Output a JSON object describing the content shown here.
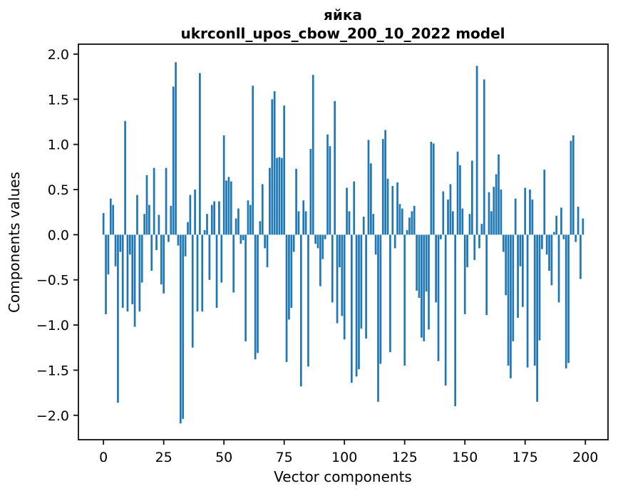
{
  "figure": {
    "title_line1": "яйка",
    "title_line2": "ukrconll_upos_cbow_200_10_2022 model"
  },
  "chart_data": {
    "type": "bar",
    "title": "яйка\nukrconll_upos_cbow_200_10_2022 model",
    "xlabel": "Vector components",
    "ylabel": "Components values",
    "bar_color": "#1f77b4",
    "bar_width": 0.8,
    "grid": false,
    "legend": null,
    "xlim": [
      -10.4,
      209.4
    ],
    "ylim": [
      -2.27,
      2.11
    ],
    "xticks": [
      {
        "value": 0,
        "label": "0"
      },
      {
        "value": 25,
        "label": "25"
      },
      {
        "value": 50,
        "label": "50"
      },
      {
        "value": 75,
        "label": "75"
      },
      {
        "value": 100,
        "label": "100"
      },
      {
        "value": 125,
        "label": "125"
      },
      {
        "value": 150,
        "label": "150"
      },
      {
        "value": 175,
        "label": "175"
      },
      {
        "value": 200,
        "label": "200"
      }
    ],
    "yticks": [
      {
        "value": 2.0,
        "label": "2.0"
      },
      {
        "value": 1.5,
        "label": "1.5"
      },
      {
        "value": 1.0,
        "label": "1.0"
      },
      {
        "value": 0.5,
        "label": "0.5"
      },
      {
        "value": 0.0,
        "label": "0.0"
      },
      {
        "value": -0.5,
        "label": "−0.5"
      },
      {
        "value": -1.0,
        "label": "−1.0"
      },
      {
        "value": -1.5,
        "label": "−1.5"
      },
      {
        "value": -2.0,
        "label": "−2.0"
      }
    ],
    "x_is_index": true,
    "values": [
      0.24,
      -0.88,
      -0.44,
      0.4,
      0.33,
      -0.35,
      -1.86,
      -0.19,
      -0.81,
      1.26,
      -0.85,
      -0.22,
      -0.77,
      -1.02,
      0.44,
      -0.85,
      -0.53,
      0.23,
      0.66,
      0.33,
      -0.4,
      0.74,
      -0.17,
      0.22,
      -0.55,
      -0.65,
      0.74,
      -0.08,
      0.32,
      1.64,
      1.91,
      -0.12,
      -2.09,
      -2.04,
      -0.24,
      0.14,
      0.44,
      -1.25,
      0.5,
      -0.85,
      1.79,
      -0.85,
      0.05,
      0.23,
      -0.5,
      0.33,
      0.37,
      -0.81,
      0.37,
      -0.53,
      1.1,
      0.6,
      0.64,
      0.59,
      -0.64,
      0.18,
      0.29,
      -0.1,
      -0.06,
      -1.18,
      0.38,
      0.33,
      1.65,
      -1.38,
      -1.31,
      0.15,
      0.56,
      -0.15,
      -0.36,
      0.74,
      1.5,
      1.59,
      0.85,
      0.86,
      0.85,
      1.43,
      -1.41,
      -0.94,
      -0.81,
      -0.19,
      0.73,
      0.26,
      -1.68,
      0.38,
      0.26,
      -1.46,
      0.95,
      1.77,
      -0.1,
      -0.15,
      -0.57,
      -0.27,
      -0.05,
      1.11,
      0.98,
      -0.75,
      1.48,
      -0.98,
      -0.36,
      -0.9,
      -1.16,
      0.52,
      0.26,
      -1.64,
      0.59,
      -1.57,
      -1.49,
      -1.04,
      0.2,
      -1.15,
      1.05,
      0.79,
      0.23,
      -0.22,
      -1.85,
      -1.43,
      1.06,
      1.16,
      0.62,
      -1.3,
      0.54,
      -0.15,
      0.58,
      0.34,
      0.29,
      -1.45,
      0.05,
      0.19,
      0.26,
      0.32,
      -0.62,
      -0.7,
      -1.14,
      -1.18,
      -0.63,
      -1.05,
      1.03,
      1.01,
      -0.75,
      -1.4,
      -0.05,
      0.48,
      -1.67,
      0.39,
      0.56,
      0.26,
      -1.9,
      0.92,
      0.77,
      0.29,
      -0.88,
      -0.36,
      0.23,
      0.82,
      -0.28,
      1.87,
      -0.15,
      0.12,
      1.72,
      -0.89,
      0.47,
      0.26,
      0.53,
      0.67,
      0.89,
      0.5,
      -0.19,
      -0.67,
      -1.45,
      -1.59,
      -1.18,
      0.4,
      -0.92,
      -0.35,
      -0.8,
      0.52,
      -1.47,
      0.5,
      0.39,
      -1.45,
      -1.85,
      -1.17,
      -0.16,
      0.72,
      -0.22,
      -0.4,
      -0.56,
      0.03,
      0.21,
      -0.75,
      0.3,
      -0.05,
      -1.48,
      -1.42,
      1.04,
      1.1,
      -0.08,
      0.31,
      -0.49,
      0.18
    ]
  }
}
